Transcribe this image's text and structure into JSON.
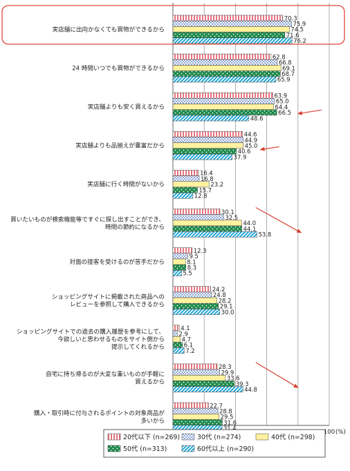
{
  "chart_data": {
    "type": "bar",
    "orientation": "horizontal",
    "categories": [
      [
        "実店舗に出向かなくても買物ができるから"
      ],
      [
        "24 時間いつでも買物ができるから"
      ],
      [
        "実店舗よりも安く買えるから"
      ],
      [
        "実店舗よりも品揃えが豊富だから"
      ],
      [
        "実店舗に行く時間がないから"
      ],
      [
        "買いたいものが検索機能等ですぐに探し出すことができ、",
        "時間の節約になるから"
      ],
      [
        "対面の接客を受けるのが苦手だから"
      ],
      [
        "ショッピングサイトに掲載された商品への",
        "レビューを参照して購入できるから"
      ],
      [
        "ショッピングサイトでの過去の購入履歴を参考にして、",
        "今欲しいと思わせるものをサイト側から",
        "提示してくれるから"
      ],
      [
        "自宅に持ち帰るのが大変な重いものが手軽に",
        "買えるから"
      ],
      [
        "購入・取引時に付与されるポイントの対象商品が",
        "多いから"
      ]
    ],
    "series": [
      {
        "name": "20代以下 (n=269)",
        "color": "#e8747e",
        "values": [
          70.3,
          62.8,
          63.9,
          44.6,
          16.4,
          30.1,
          12.3,
          24.2,
          4.1,
          28.3,
          22.7
        ]
      },
      {
        "name": "30代 (n=274)",
        "color": "#4a74c4",
        "values": [
          75.9,
          66.8,
          65.0,
          44.9,
          16.8,
          32.5,
          9.5,
          24.8,
          2.9,
          29.9,
          28.8
        ]
      },
      {
        "name": "40代 (n=298)",
        "color": "#fff2a0",
        "values": [
          74.5,
          69.1,
          64.4,
          45.0,
          23.2,
          44.0,
          8.1,
          28.2,
          4.7,
          33.6,
          29.5
        ]
      },
      {
        "name": "50代 (n=313)",
        "color": "#1f8a4c",
        "values": [
          71.6,
          68.7,
          66.5,
          40.6,
          15.7,
          44.1,
          8.3,
          29.1,
          6.1,
          39.3,
          31.6
        ]
      },
      {
        "name": "60代以上 (n=290)",
        "color": "#1fa6d6",
        "values": [
          76.2,
          65.9,
          48.6,
          37.9,
          12.8,
          53.8,
          5.5,
          30.0,
          7.2,
          44.8,
          31.4
        ]
      }
    ],
    "xlim": [
      0,
      100
    ],
    "xticks": [
      "0",
      "20",
      "40",
      "60",
      "80",
      "100"
    ],
    "xunit": "(%)",
    "grid": "vertical",
    "legend_position": "bottom-right",
    "highlight": {
      "category_index": 0,
      "box_color": "#e0463c"
    },
    "arrows": {
      "color": "#d94032",
      "category_indices": [
        2,
        3,
        5,
        9
      ]
    }
  }
}
